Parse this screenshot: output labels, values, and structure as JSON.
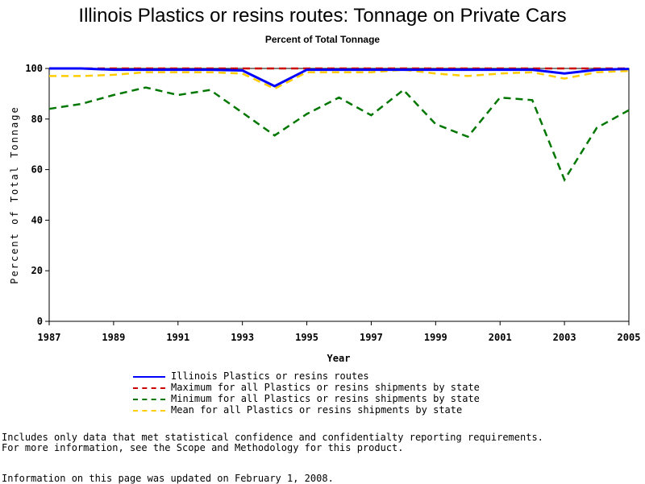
{
  "title": "Illinois Plastics or resins routes: Tonnage on Private Cars",
  "subtitle": "Percent of Total Tonnage",
  "notes": {
    "line1": "Includes only data that met statistical confidence and confidentialty reporting requirements.",
    "line2": "For more information, see the Scope and Methodology for this product.",
    "updated": "Information on this page was updated on February 1, 2008."
  },
  "chart_data": {
    "type": "line",
    "title": "Illinois Plastics or resins routes: Tonnage on Private Cars",
    "subtitle": "Percent of Total Tonnage",
    "xlabel": "Year",
    "ylabel": "Percent of Total Tonnage",
    "xlim": [
      1987,
      2005
    ],
    "ylim": [
      0,
      100
    ],
    "xticks": [
      "1987",
      "1989",
      "1991",
      "1993",
      "1995",
      "1997",
      "1999",
      "2001",
      "2003",
      "2005"
    ],
    "yticks": [
      "0",
      "20",
      "40",
      "60",
      "80",
      "100"
    ],
    "grid": false,
    "legend_position": "bottom",
    "x": [
      1987,
      1988,
      1989,
      1990,
      1991,
      1992,
      1993,
      1994,
      1995,
      1996,
      1997,
      1998,
      1999,
      2000,
      2001,
      2002,
      2003,
      2004,
      2005
    ],
    "series": [
      {
        "name": "Illinois Plastics or resins routes",
        "color": "#0000ff",
        "dash": "solid",
        "values": [
          100,
          100,
          99.5,
          99.5,
          99.5,
          99.5,
          99.2,
          93,
          99.5,
          99.5,
          99.5,
          99.5,
          99.5,
          99.5,
          99.5,
          99.5,
          98,
          99.5,
          99.8
        ]
      },
      {
        "name": "Maximum for all Plastics or resins shipments by state",
        "color": "#cc0000",
        "dash": "dashed",
        "values": [
          100,
          100,
          100,
          100,
          100,
          100,
          100,
          100,
          100,
          100,
          100,
          100,
          100,
          100,
          100,
          100,
          100,
          100,
          100
        ]
      },
      {
        "name": "Minimum for all Plastics or resins shipments by state",
        "color": "#007700",
        "dash": "dashed",
        "values": [
          84,
          86,
          89.5,
          92.5,
          89.5,
          91.5,
          82.5,
          73.5,
          82,
          88.5,
          81.5,
          91.5,
          78,
          73,
          88.5,
          87.5,
          56,
          76.5,
          83.5
        ]
      },
      {
        "name": "Mean for all Plastics or resins shipments by state",
        "color": "#ffcc00",
        "dash": "dashed",
        "values": [
          97,
          97,
          97.5,
          98.5,
          98.5,
          98.5,
          98,
          92,
          98.5,
          98.5,
          98.5,
          99.5,
          98,
          97,
          98,
          98.5,
          96,
          98.5,
          99
        ]
      }
    ]
  }
}
